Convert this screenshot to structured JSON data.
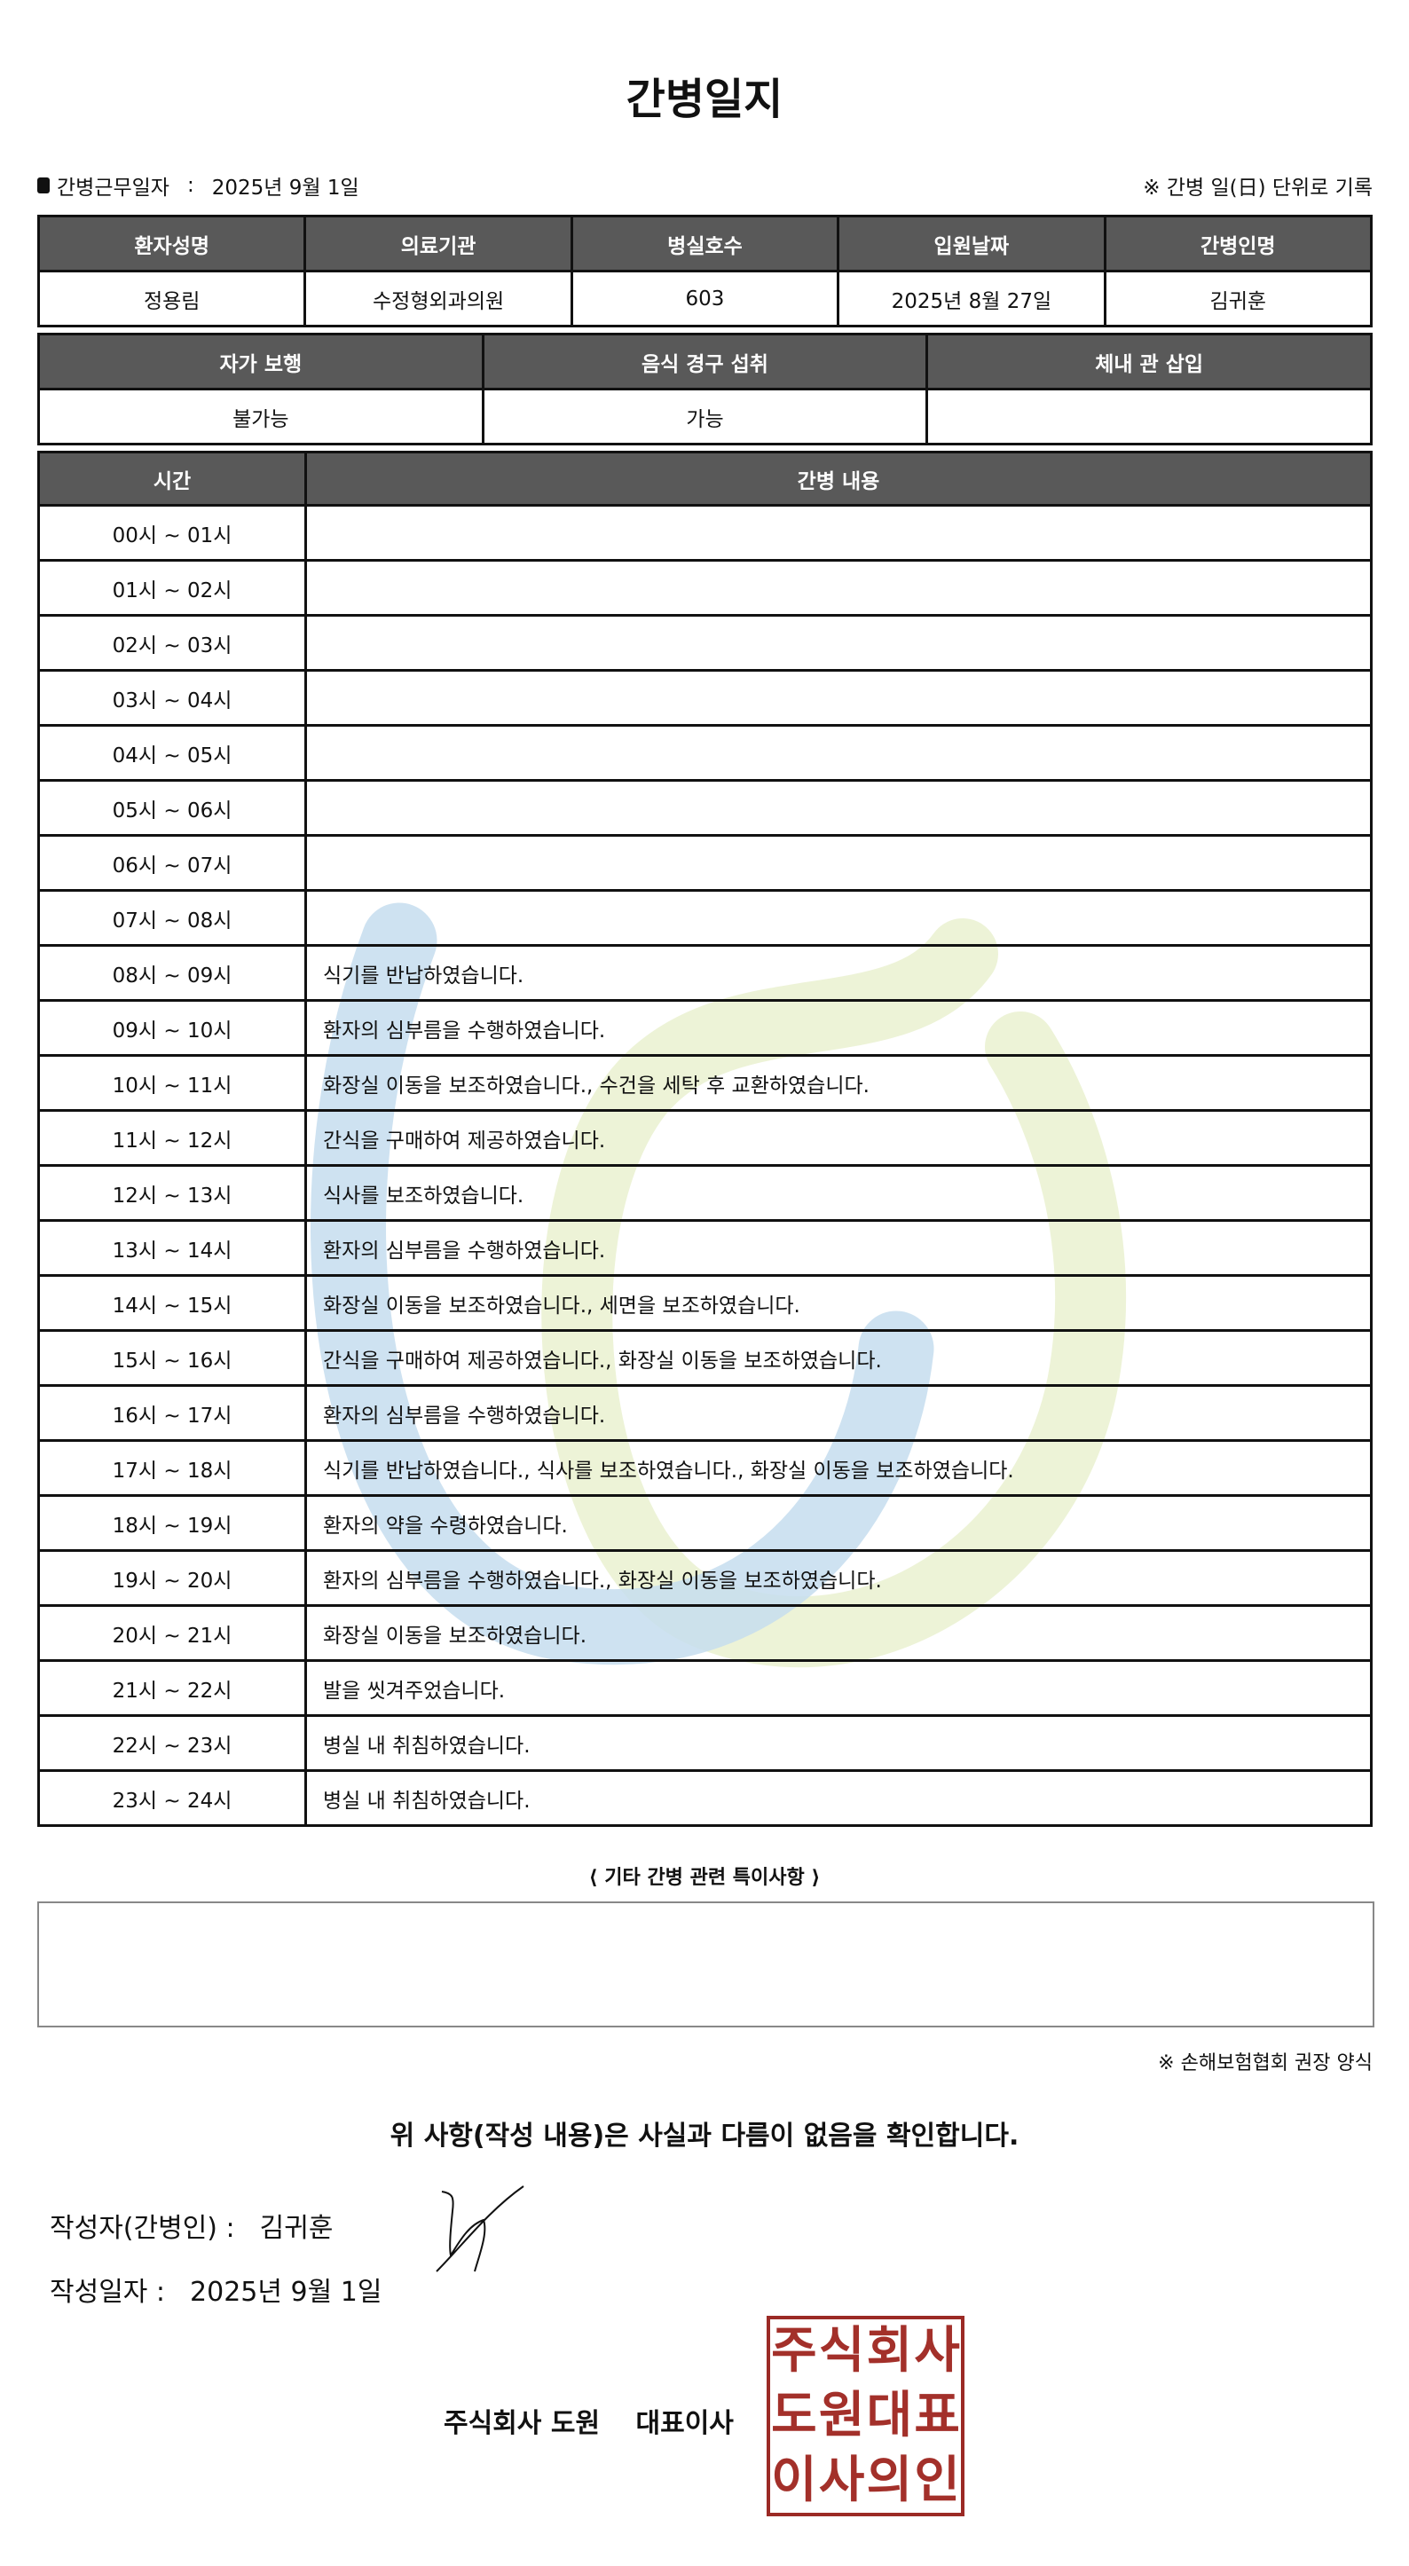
{
  "title": "간병일지",
  "work_date_label": "간병근무일자",
  "work_date": "2025년 9월 1일",
  "day_note": "※ 간병 일(日) 단위로 기록",
  "info": {
    "headers": [
      "환자성명",
      "의료기관",
      "병실호수",
      "입원날짜",
      "간병인명"
    ],
    "values": [
      "정용림",
      "수정형외과의원",
      "603",
      "2025년 8월 27일",
      "김귀훈"
    ]
  },
  "status": {
    "headers": [
      "자가 보행",
      "음식 경구 섭취",
      "체내 관 삽입"
    ],
    "values": [
      "불가능",
      "가능",
      ""
    ]
  },
  "log": {
    "headers": [
      "시간",
      "간병 내용"
    ],
    "rows": [
      {
        "time": "00시 ~ 01시",
        "content": ""
      },
      {
        "time": "01시 ~ 02시",
        "content": ""
      },
      {
        "time": "02시 ~ 03시",
        "content": ""
      },
      {
        "time": "03시 ~ 04시",
        "content": ""
      },
      {
        "time": "04시 ~ 05시",
        "content": ""
      },
      {
        "time": "05시 ~ 06시",
        "content": ""
      },
      {
        "time": "06시 ~ 07시",
        "content": ""
      },
      {
        "time": "07시 ~ 08시",
        "content": ""
      },
      {
        "time": "08시 ~ 09시",
        "content": "식기를 반납하였습니다."
      },
      {
        "time": "09시 ~ 10시",
        "content": "환자의 심부름을 수행하였습니다."
      },
      {
        "time": "10시 ~ 11시",
        "content": "화장실 이동을 보조하였습니다., 수건을 세탁 후 교환하였습니다."
      },
      {
        "time": "11시 ~ 12시",
        "content": "간식을 구매하여 제공하였습니다."
      },
      {
        "time": "12시 ~ 13시",
        "content": "식사를 보조하였습니다."
      },
      {
        "time": "13시 ~ 14시",
        "content": "환자의 심부름을 수행하였습니다."
      },
      {
        "time": "14시 ~ 15시",
        "content": "화장실 이동을 보조하였습니다., 세면을 보조하였습니다."
      },
      {
        "time": "15시 ~ 16시",
        "content": "간식을 구매하여 제공하였습니다., 화장실 이동을 보조하였습니다."
      },
      {
        "time": "16시 ~ 17시",
        "content": "환자의 심부름을 수행하였습니다."
      },
      {
        "time": "17시 ~ 18시",
        "content": "식기를 반납하였습니다., 식사를 보조하였습니다., 화장실 이동을 보조하였습니다."
      },
      {
        "time": "18시 ~ 19시",
        "content": "환자의 약을 수령하였습니다."
      },
      {
        "time": "19시 ~ 20시",
        "content": "환자의 심부름을 수행하였습니다., 화장실 이동을 보조하였습니다."
      },
      {
        "time": "20시 ~ 21시",
        "content": "화장실 이동을 보조하였습니다."
      },
      {
        "time": "21시 ~ 22시",
        "content": "발을 씻겨주었습니다."
      },
      {
        "time": "22시 ~ 23시",
        "content": "병실 내 취침하였습니다."
      },
      {
        "time": "23시 ~ 24시",
        "content": "병실 내 취침하였습니다."
      }
    ]
  },
  "memo_label": "⟨ 기타 간병 관련 특이사항 ⟩",
  "memo": "",
  "footnote": "※ 손해보험협회 권장 양식",
  "confirm": "위 사항(작성 내용)은 사실과 다름이 없음을 확인합니다.",
  "writer_label": "작성자(간병인) :",
  "writer_name": "김귀훈",
  "write_date_label": "작성일자 :",
  "write_date": "2025년 9월 1일",
  "company": "주식회사 도원　 대표이사",
  "seal_text": "주식회사도원대표이사의인",
  "colors": {
    "header_bg": "#595959",
    "seal": "#a3302a",
    "watermark_blue": "#c6ddef",
    "watermark_green": "#eaf1d0"
  }
}
